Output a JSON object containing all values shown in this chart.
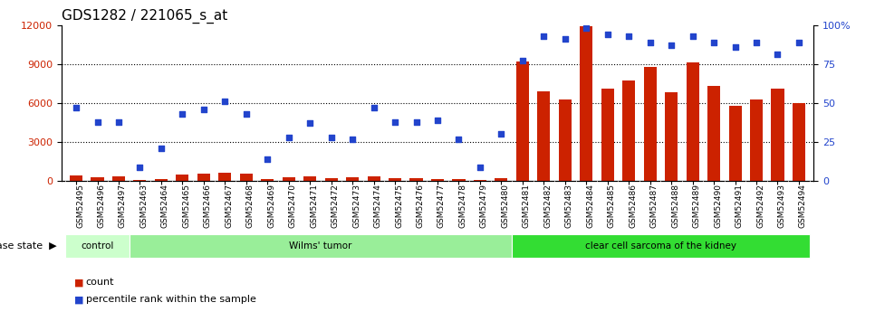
{
  "title": "GDS1282 / 221065_s_at",
  "samples": [
    "GSM52495",
    "GSM52496",
    "GSM52497",
    "GSM52463",
    "GSM52464",
    "GSM52465",
    "GSM52466",
    "GSM52467",
    "GSM52468",
    "GSM52469",
    "GSM52470",
    "GSM52471",
    "GSM52472",
    "GSM52473",
    "GSM52474",
    "GSM52475",
    "GSM52476",
    "GSM52477",
    "GSM52478",
    "GSM52479",
    "GSM52480",
    "GSM52481",
    "GSM52482",
    "GSM52483",
    "GSM52484",
    "GSM52485",
    "GSM52486",
    "GSM52487",
    "GSM52488",
    "GSM52489",
    "GSM52490",
    "GSM52491",
    "GSM52492",
    "GSM52493",
    "GSM52494"
  ],
  "counts": [
    450,
    280,
    350,
    100,
    160,
    500,
    550,
    650,
    550,
    120,
    300,
    380,
    200,
    310,
    370,
    200,
    210,
    160,
    150,
    100,
    220,
    9200,
    6900,
    6300,
    11900,
    7100,
    7700,
    8800,
    6800,
    9100,
    7300,
    5800,
    6300,
    7100,
    6000
  ],
  "percentile": [
    47,
    38,
    38,
    9,
    21,
    43,
    46,
    51,
    43,
    14,
    28,
    37,
    28,
    27,
    47,
    38,
    38,
    39,
    27,
    9,
    30,
    77,
    93,
    91,
    98,
    94,
    93,
    89,
    87,
    93,
    89,
    86,
    89,
    81,
    89
  ],
  "disease_groups": [
    {
      "label": "control",
      "start": 0,
      "end": 3,
      "color": "#ccffcc"
    },
    {
      "label": "Wilms' tumor",
      "start": 3,
      "end": 21,
      "color": "#99ee99"
    },
    {
      "label": "clear cell sarcoma of the kidney",
      "start": 21,
      "end": 35,
      "color": "#33dd33"
    }
  ],
  "bar_color": "#cc2200",
  "dot_color": "#2244cc",
  "left_ylim": [
    0,
    12000
  ],
  "right_ylim": [
    0,
    100
  ],
  "left_yticks": [
    0,
    3000,
    6000,
    9000,
    12000
  ],
  "right_yticks": [
    0,
    25,
    50,
    75,
    100
  ],
  "right_yticklabels": [
    "0",
    "25",
    "50",
    "75",
    "100%"
  ],
  "bg_color": "#ffffff",
  "title_fontsize": 11,
  "tick_fontsize": 7,
  "disease_label": "disease state"
}
